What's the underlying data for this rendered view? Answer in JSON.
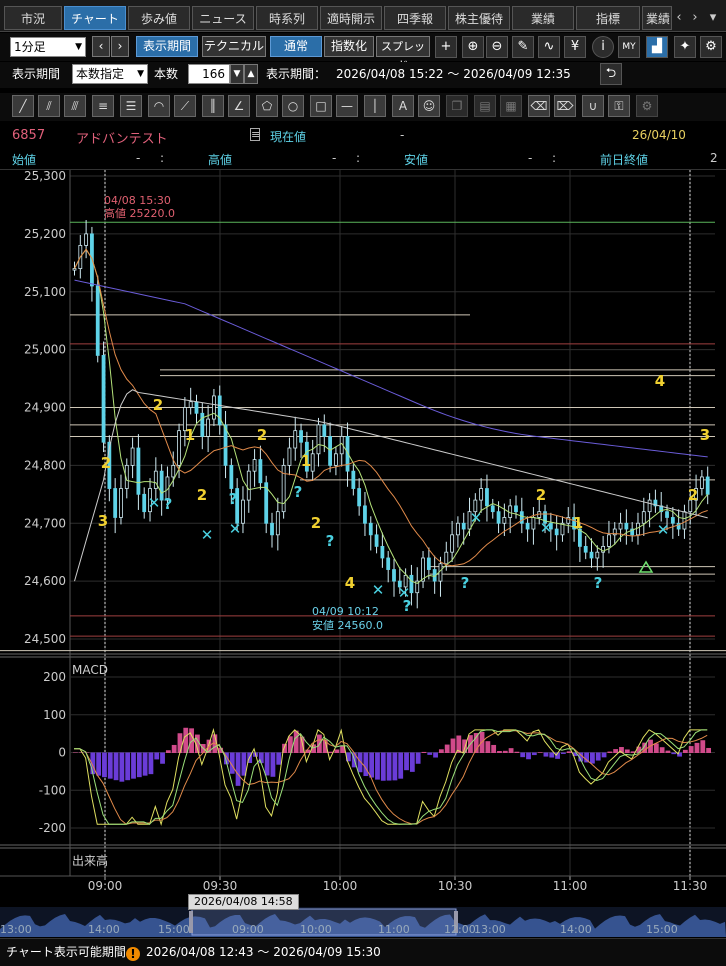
{
  "tabs": [
    "市況",
    "チャート",
    "歩み値",
    "ニュース",
    "時系列",
    "適時開示",
    "四季報",
    "株主優待",
    "業績",
    "指標",
    "業績"
  ],
  "tab_active": "チャート",
  "toolbar": {
    "interval": "1分足",
    "period_button": "表示期間",
    "technical_button": "テクニカル",
    "mode_normal": "通常",
    "mode_index": "指数化",
    "mode_spread": "スプレッド"
  },
  "period_row": {
    "label_period": "表示期間",
    "period_select": "本数指定",
    "label_count": "本数",
    "count_value": "166",
    "label_range": "表示期間：",
    "range_value": "2026/04/08 15:22 ～ 2026/04/09 12:35"
  },
  "security": {
    "code": "6857",
    "name": "アドバンテスト",
    "current_label": "現在値",
    "current_value": "-",
    "date": "26/04/10",
    "open_label": "始値",
    "open_value": "-",
    "open_sep": ":",
    "high_label": "高値",
    "high_value": "-",
    "high_sep": ":",
    "low_label": "安値",
    "low_value": "-",
    "low_sep": ":",
    "prev_close_label": "前日終値",
    "prev_close_value": "2"
  },
  "annotations": {
    "high_time": "04/08 15:30",
    "high_text": "高値 25220.0",
    "low_time": "04/09 10:12",
    "low_text": "安値 24560.0",
    "macd_label": "MACD",
    "volume_label": "出来高"
  },
  "price_axis": [
    "25,300",
    "25,200",
    "25,100",
    "25,000",
    "24,900",
    "24,800",
    "24,700",
    "24,600",
    "24,500"
  ],
  "macd_axis": [
    "200",
    "100",
    "0",
    "-100",
    "-200"
  ],
  "time_axis": [
    "09:00",
    "09:30",
    "10:00",
    "10:30",
    "11:00",
    "11:30"
  ],
  "navigator": {
    "tooltip": "2026/04/08 14:58",
    "labels": [
      "13:00",
      "14:00",
      "15:00",
      "09:00",
      "10:00",
      "11:00",
      "12:00",
      "13:00",
      "14:00",
      "15:00"
    ]
  },
  "footer": {
    "label": "チャート表示可能期間",
    "range": "2026/04/08 12:43 ～ 2026/04/09 15:30"
  },
  "colors": {
    "accent": "#2b6ea8",
    "candle": "#5fd3e8",
    "ma_short": "#b4e27a",
    "ma_mid": "#e08a4a",
    "ma_long": "#6a5cd8",
    "ma_xlong": "#cccccc",
    "macd_pos": "#d04a8a",
    "macd_neg": "#6a3cd8"
  }
}
